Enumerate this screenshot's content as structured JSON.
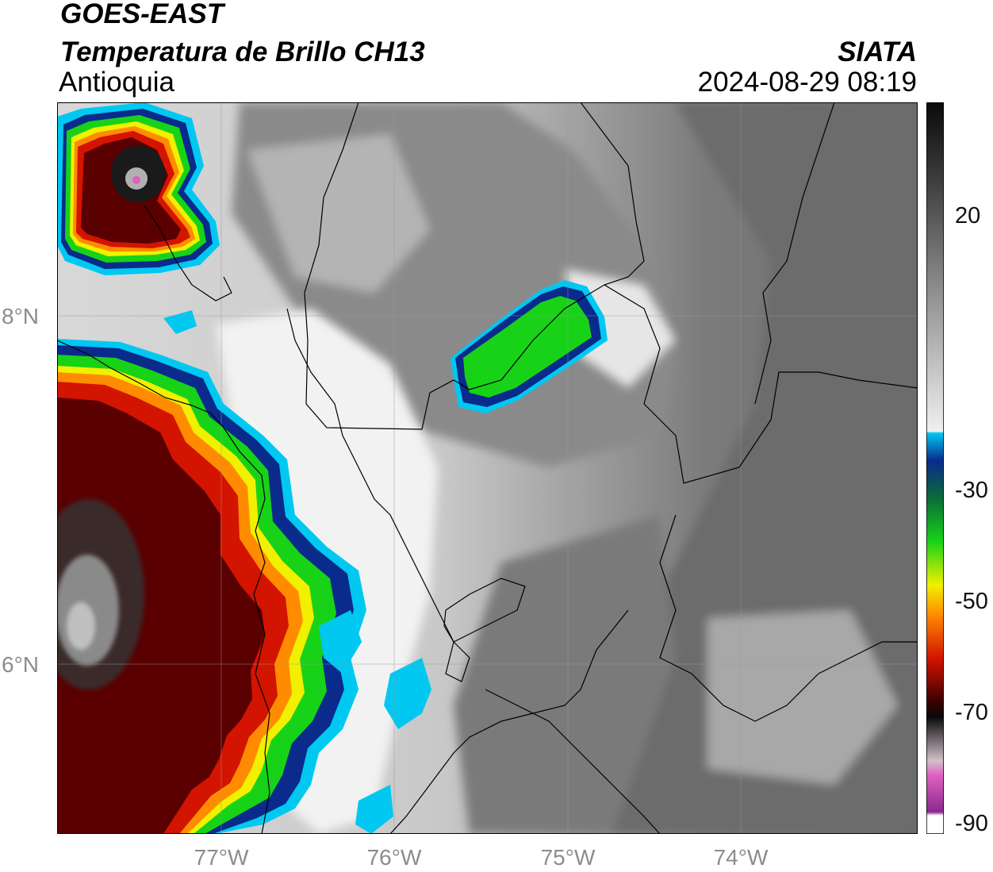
{
  "header": {
    "satellite": "GOES-EAST",
    "product": "Temperatura de Brillo CH13",
    "region": "Antioquia",
    "source": "SIATA",
    "datetime": "2024-08-29 08:19"
  },
  "axes": {
    "lat_labels": [
      "8°N",
      "6°N"
    ],
    "lon_labels": [
      "77°W",
      "76°W",
      "75°W",
      "74°W"
    ]
  },
  "colorbar": {
    "tick_labels": [
      "20",
      "-30",
      "-50",
      "-70",
      "-90"
    ],
    "palette": {
      "warm_gray_light": "#f0f0f0",
      "warm_gray_dark": "#4a4a4a",
      "cyan": "#00c8f0",
      "blue": "#0a2a8c",
      "green": "#18d218",
      "yellow": "#f0f000",
      "orange": "#ff8c00",
      "red": "#d21400",
      "dark_red": "#5a0000",
      "black": "#0a0a0a",
      "pink": "#e060c0",
      "purple": "#8a2890"
    }
  }
}
